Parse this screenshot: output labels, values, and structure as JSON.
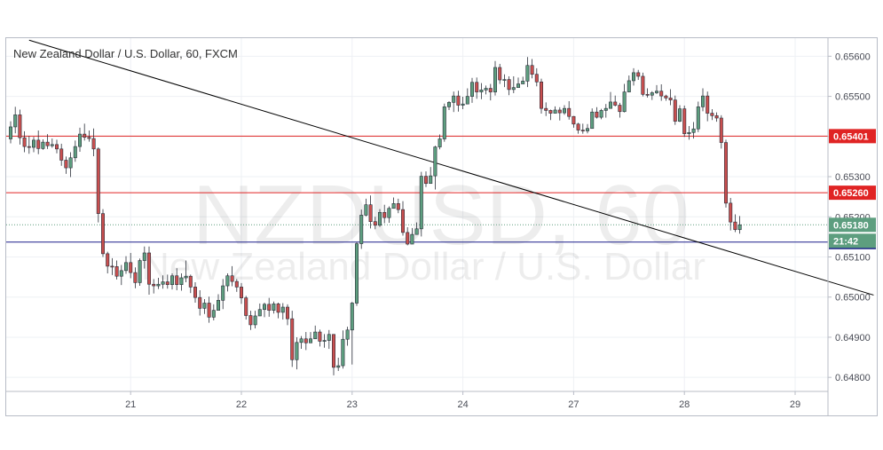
{
  "chart_data": {
    "type": "candlestick",
    "title": "New Zealand Dollar / U.S. Dollar, 60, FXCM",
    "watermark_symbol": "NZDUSD, 60",
    "watermark_name": "New Zealand Dollar / U.S. Dollar",
    "ylim": [
      0.64765,
      0.65645
    ],
    "y_ticks": [
      "0.65600",
      "0.65500",
      "0.65400",
      "0.65300",
      "0.65200",
      "0.65100",
      "0.65000",
      "0.64900",
      "0.64800"
    ],
    "x_ticks": [
      {
        "label": "21",
        "index": 26
      },
      {
        "label": "22",
        "index": 50
      },
      {
        "label": "23",
        "index": 74
      },
      {
        "label": "24",
        "index": 98
      },
      {
        "label": "27",
        "index": 122
      },
      {
        "label": "28",
        "index": 146
      },
      {
        "label": "29",
        "index": 170
      }
    ],
    "grid": true,
    "up_color": "#5d9e7f",
    "down_color": "#c94f4f",
    "horizontal_lines": [
      {
        "value": 0.65401,
        "label": "0.65401",
        "color": "#e02424"
      },
      {
        "value": 0.6526,
        "label": "0.65260",
        "color": "#e02424"
      },
      {
        "value": 0.65137,
        "label": "0.65137",
        "color": "#1b1f8a"
      }
    ],
    "last_price": {
      "value": 0.6518,
      "label": "0.65180",
      "countdown": "21:42",
      "color": "#5d9e7f"
    },
    "trendline": {
      "start": {
        "index": 4,
        "value": 0.6564
      },
      "end": {
        "index": 187,
        "value": 0.65005
      }
    },
    "candles": [
      [
        0.65394,
        0.65424,
        0.65438,
        0.65383
      ],
      [
        0.65424,
        0.65454,
        0.65474,
        0.65408
      ],
      [
        0.65454,
        0.65397,
        0.65467,
        0.6538
      ],
      [
        0.65397,
        0.65375,
        0.65413,
        0.65361
      ],
      [
        0.65375,
        0.65373,
        0.65401,
        0.65357
      ],
      [
        0.65373,
        0.65391,
        0.65399,
        0.65361
      ],
      [
        0.65391,
        0.6537,
        0.65415,
        0.65356
      ],
      [
        0.6537,
        0.65386,
        0.65393,
        0.65367
      ],
      [
        0.65386,
        0.65377,
        0.65406,
        0.65369
      ],
      [
        0.65377,
        0.6538,
        0.65395,
        0.65372
      ],
      [
        0.6538,
        0.65369,
        0.65392,
        0.65358
      ],
      [
        0.65369,
        0.65341,
        0.65382,
        0.65327
      ],
      [
        0.65341,
        0.65322,
        0.6535,
        0.65307
      ],
      [
        0.65322,
        0.65347,
        0.65361,
        0.65299
      ],
      [
        0.65347,
        0.65375,
        0.6539,
        0.65337
      ],
      [
        0.65375,
        0.65406,
        0.65422,
        0.65362
      ],
      [
        0.65406,
        0.65398,
        0.65432,
        0.6539
      ],
      [
        0.65398,
        0.65395,
        0.65415,
        0.65387
      ],
      [
        0.65395,
        0.65369,
        0.6542,
        0.65351
      ],
      [
        0.65369,
        0.65208,
        0.65373,
        0.65186
      ],
      [
        0.65208,
        0.65108,
        0.65219,
        0.651
      ],
      [
        0.65108,
        0.65077,
        0.65113,
        0.65059
      ],
      [
        0.65077,
        0.65076,
        0.65097,
        0.65055
      ],
      [
        0.65076,
        0.65052,
        0.65091,
        0.65044
      ],
      [
        0.65052,
        0.65066,
        0.6508,
        0.6503
      ],
      [
        0.65066,
        0.65086,
        0.65102,
        0.65058
      ],
      [
        0.65086,
        0.65061,
        0.6511,
        0.65047
      ],
      [
        0.65061,
        0.65036,
        0.65074,
        0.65022
      ],
      [
        0.65036,
        0.65091,
        0.65096,
        0.65028
      ],
      [
        0.65091,
        0.6511,
        0.65126,
        0.65071
      ],
      [
        0.6511,
        0.65032,
        0.65126,
        0.65006
      ],
      [
        0.65032,
        0.65028,
        0.65045,
        0.65009
      ],
      [
        0.65028,
        0.65032,
        0.65048,
        0.6502
      ],
      [
        0.65032,
        0.65038,
        0.65054,
        0.65021
      ],
      [
        0.65038,
        0.65031,
        0.65056,
        0.65021
      ],
      [
        0.65031,
        0.65053,
        0.65059,
        0.65019
      ],
      [
        0.65053,
        0.65031,
        0.65072,
        0.65017
      ],
      [
        0.65031,
        0.65048,
        0.65059,
        0.65016
      ],
      [
        0.65048,
        0.65052,
        0.65091,
        0.65037
      ],
      [
        0.65052,
        0.65025,
        0.65056,
        0.6501
      ],
      [
        0.65025,
        0.64999,
        0.65037,
        0.64986
      ],
      [
        0.64999,
        0.64972,
        0.65017,
        0.64954
      ],
      [
        0.64972,
        0.64985,
        0.64995,
        0.64958
      ],
      [
        0.64985,
        0.6495,
        0.65001,
        0.64936
      ],
      [
        0.6495,
        0.64967,
        0.64982,
        0.64942
      ],
      [
        0.64967,
        0.64992,
        0.65007,
        0.64983
      ],
      [
        0.64992,
        0.65028,
        0.65045,
        0.6497
      ],
      [
        0.65028,
        0.65053,
        0.65059,
        0.65014
      ],
      [
        0.65053,
        0.65039,
        0.65077,
        0.65027
      ],
      [
        0.65039,
        0.65025,
        0.65045,
        0.65013
      ],
      [
        0.65025,
        0.64998,
        0.65035,
        0.64983
      ],
      [
        0.64998,
        0.64954,
        0.65003,
        0.64944
      ],
      [
        0.64954,
        0.64931,
        0.64966,
        0.64918
      ],
      [
        0.64931,
        0.64953,
        0.64966,
        0.64922
      ],
      [
        0.64953,
        0.64969,
        0.64984,
        0.64962
      ],
      [
        0.64969,
        0.64982,
        0.64986,
        0.6495
      ],
      [
        0.64982,
        0.64967,
        0.64998,
        0.64951
      ],
      [
        0.64967,
        0.64983,
        0.64989,
        0.64959
      ],
      [
        0.64983,
        0.64962,
        0.64986,
        0.64947
      ],
      [
        0.64962,
        0.64975,
        0.64985,
        0.64944
      ],
      [
        0.64975,
        0.64946,
        0.64982,
        0.6493
      ],
      [
        0.64946,
        0.64844,
        0.64966,
        0.64826
      ],
      [
        0.64844,
        0.64887,
        0.649,
        0.6482
      ],
      [
        0.64887,
        0.64896,
        0.64903,
        0.64871
      ],
      [
        0.64896,
        0.64886,
        0.64913,
        0.64868
      ],
      [
        0.64886,
        0.64896,
        0.64913,
        0.64891
      ],
      [
        0.64896,
        0.64913,
        0.64929,
        0.64905
      ],
      [
        0.64913,
        0.6489,
        0.64919,
        0.64877
      ],
      [
        0.6489,
        0.64892,
        0.64908,
        0.64874
      ],
      [
        0.64892,
        0.64907,
        0.64918,
        0.64871
      ],
      [
        0.64907,
        0.64825,
        0.64908,
        0.64805
      ],
      [
        0.64825,
        0.64829,
        0.64849,
        0.64816
      ],
      [
        0.64829,
        0.64895,
        0.64917,
        0.64822
      ],
      [
        0.64895,
        0.64918,
        0.64926,
        0.64879
      ],
      [
        0.64918,
        0.64985,
        0.64988,
        0.64832
      ],
      [
        0.64985,
        0.65133,
        0.65137,
        0.64978
      ],
      [
        0.65133,
        0.65204,
        0.65218,
        0.6512
      ],
      [
        0.65204,
        0.6523,
        0.65245,
        0.65201
      ],
      [
        0.6523,
        0.65188,
        0.65253,
        0.65171
      ],
      [
        0.65188,
        0.65179,
        0.652,
        0.65169
      ],
      [
        0.65179,
        0.65211,
        0.65219,
        0.65175
      ],
      [
        0.65211,
        0.65198,
        0.6523,
        0.65184
      ],
      [
        0.65198,
        0.65221,
        0.65226,
        0.65185
      ],
      [
        0.65221,
        0.65233,
        0.65248,
        0.65221
      ],
      [
        0.65233,
        0.65218,
        0.65245,
        0.65209
      ],
      [
        0.65218,
        0.65161,
        0.65239,
        0.65153
      ],
      [
        0.65161,
        0.65132,
        0.65174,
        0.65129
      ],
      [
        0.65132,
        0.65156,
        0.65172,
        0.6514
      ],
      [
        0.65156,
        0.6517,
        0.65186,
        0.65166
      ],
      [
        0.6517,
        0.65301,
        0.65312,
        0.65151
      ],
      [
        0.65301,
        0.65283,
        0.65313,
        0.65274
      ],
      [
        0.65283,
        0.65302,
        0.65324,
        0.65287
      ],
      [
        0.65302,
        0.65374,
        0.65377,
        0.65268
      ],
      [
        0.65374,
        0.65394,
        0.65405,
        0.65368
      ],
      [
        0.65394,
        0.65474,
        0.65482,
        0.65387
      ],
      [
        0.65474,
        0.65485,
        0.65488,
        0.65466
      ],
      [
        0.65485,
        0.65501,
        0.65512,
        0.65461
      ],
      [
        0.65501,
        0.65478,
        0.65514,
        0.65462
      ],
      [
        0.65478,
        0.65481,
        0.65499,
        0.65468
      ],
      [
        0.65481,
        0.655,
        0.6552,
        0.65483
      ],
      [
        0.655,
        0.65535,
        0.65546,
        0.65484
      ],
      [
        0.65535,
        0.65511,
        0.65547,
        0.65494
      ],
      [
        0.65511,
        0.65516,
        0.65533,
        0.65493
      ],
      [
        0.65516,
        0.6552,
        0.65527,
        0.65505
      ],
      [
        0.6552,
        0.65511,
        0.65531,
        0.6549
      ],
      [
        0.65511,
        0.65572,
        0.65588,
        0.65502
      ],
      [
        0.65572,
        0.65541,
        0.65581,
        0.65531
      ],
      [
        0.65541,
        0.65542,
        0.65555,
        0.65523
      ],
      [
        0.65542,
        0.65517,
        0.6555,
        0.65503
      ],
      [
        0.65517,
        0.65522,
        0.6555,
        0.65508
      ],
      [
        0.65522,
        0.65531,
        0.65547,
        0.65526
      ],
      [
        0.65531,
        0.65538,
        0.65549,
        0.65532
      ],
      [
        0.65538,
        0.65577,
        0.65598,
        0.65523
      ],
      [
        0.65577,
        0.65555,
        0.65593,
        0.65545
      ],
      [
        0.65555,
        0.65536,
        0.6557,
        0.65525
      ],
      [
        0.65536,
        0.6547,
        0.65544,
        0.65457
      ],
      [
        0.6547,
        0.65465,
        0.65485,
        0.65451
      ],
      [
        0.65465,
        0.65458,
        0.65467,
        0.65441
      ],
      [
        0.65458,
        0.65466,
        0.65475,
        0.65458
      ],
      [
        0.65466,
        0.65459,
        0.65473,
        0.6544
      ],
      [
        0.65459,
        0.6547,
        0.65478,
        0.65454
      ],
      [
        0.6547,
        0.6545,
        0.65488,
        0.65442
      ],
      [
        0.6545,
        0.65431,
        0.65451,
        0.65422
      ],
      [
        0.65431,
        0.65416,
        0.65434,
        0.65407
      ],
      [
        0.65416,
        0.65414,
        0.65432,
        0.65407
      ],
      [
        0.65414,
        0.6542,
        0.65431,
        0.65408
      ],
      [
        0.6542,
        0.65461,
        0.6547,
        0.6542
      ],
      [
        0.65461,
        0.65448,
        0.65473,
        0.65445
      ],
      [
        0.65448,
        0.65465,
        0.65469,
        0.65443
      ],
      [
        0.65465,
        0.6547,
        0.65481,
        0.65447
      ],
      [
        0.6547,
        0.65486,
        0.65511,
        0.65481
      ],
      [
        0.65486,
        0.65478,
        0.65502,
        0.65475
      ],
      [
        0.65478,
        0.65462,
        0.65484,
        0.65447
      ],
      [
        0.65462,
        0.65511,
        0.65531,
        0.6546
      ],
      [
        0.65511,
        0.65539,
        0.65552,
        0.6551
      ],
      [
        0.65539,
        0.65559,
        0.6557,
        0.65527
      ],
      [
        0.65559,
        0.6555,
        0.65566,
        0.65541
      ],
      [
        0.6555,
        0.65505,
        0.65559,
        0.655
      ],
      [
        0.65505,
        0.65503,
        0.6552,
        0.65497
      ],
      [
        0.65503,
        0.65509,
        0.65513,
        0.65491
      ],
      [
        0.65509,
        0.65513,
        0.65528,
        0.65506
      ],
      [
        0.65513,
        0.65501,
        0.6553,
        0.65489
      ],
      [
        0.65501,
        0.65496,
        0.65504,
        0.65489
      ],
      [
        0.65496,
        0.65491,
        0.65518,
        0.65478
      ],
      [
        0.65491,
        0.65438,
        0.65502,
        0.65429
      ],
      [
        0.65438,
        0.65469,
        0.65478,
        0.65436
      ],
      [
        0.65469,
        0.65407,
        0.65477,
        0.65399
      ],
      [
        0.65407,
        0.6541,
        0.65426,
        0.65392
      ],
      [
        0.6541,
        0.65419,
        0.65436,
        0.65395
      ],
      [
        0.65419,
        0.65474,
        0.65487,
        0.65411
      ],
      [
        0.65474,
        0.65501,
        0.6552,
        0.65463
      ],
      [
        0.65501,
        0.65458,
        0.65512,
        0.65438
      ],
      [
        0.65458,
        0.65452,
        0.65468,
        0.65441
      ],
      [
        0.65452,
        0.65446,
        0.6546,
        0.65437
      ],
      [
        0.65446,
        0.65385,
        0.65453,
        0.6537
      ],
      [
        0.65385,
        0.65234,
        0.65392,
        0.65223
      ],
      [
        0.65234,
        0.65187,
        0.65247,
        0.65166
      ],
      [
        0.65187,
        0.65168,
        0.65206,
        0.65162
      ],
      [
        0.65168,
        0.6518,
        0.65202,
        0.65158
      ]
    ]
  }
}
